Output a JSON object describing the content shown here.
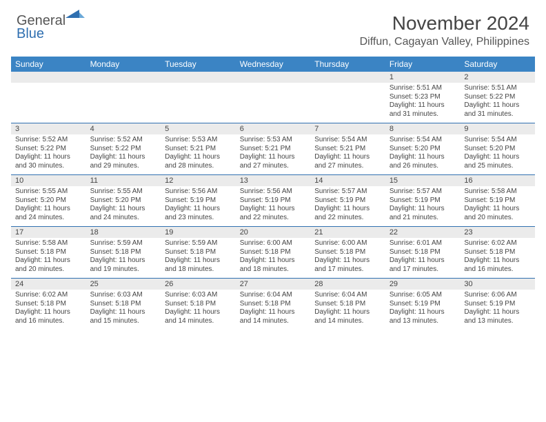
{
  "brand": {
    "general": "General",
    "blue": "Blue"
  },
  "title": "November 2024",
  "location": "Diffun, Cagayan Valley, Philippines",
  "colors": {
    "header_bg": "#3b84c4",
    "border": "#2f6fb0",
    "daynum_bg": "#ebebeb",
    "text": "#444444"
  },
  "day_names": [
    "Sunday",
    "Monday",
    "Tuesday",
    "Wednesday",
    "Thursday",
    "Friday",
    "Saturday"
  ],
  "weeks": [
    [
      {
        "n": "",
        "sr": "",
        "ss": "",
        "dl": ""
      },
      {
        "n": "",
        "sr": "",
        "ss": "",
        "dl": ""
      },
      {
        "n": "",
        "sr": "",
        "ss": "",
        "dl": ""
      },
      {
        "n": "",
        "sr": "",
        "ss": "",
        "dl": ""
      },
      {
        "n": "",
        "sr": "",
        "ss": "",
        "dl": ""
      },
      {
        "n": "1",
        "sr": "Sunrise: 5:51 AM",
        "ss": "Sunset: 5:23 PM",
        "dl": "Daylight: 11 hours and 31 minutes."
      },
      {
        "n": "2",
        "sr": "Sunrise: 5:51 AM",
        "ss": "Sunset: 5:22 PM",
        "dl": "Daylight: 11 hours and 31 minutes."
      }
    ],
    [
      {
        "n": "3",
        "sr": "Sunrise: 5:52 AM",
        "ss": "Sunset: 5:22 PM",
        "dl": "Daylight: 11 hours and 30 minutes."
      },
      {
        "n": "4",
        "sr": "Sunrise: 5:52 AM",
        "ss": "Sunset: 5:22 PM",
        "dl": "Daylight: 11 hours and 29 minutes."
      },
      {
        "n": "5",
        "sr": "Sunrise: 5:53 AM",
        "ss": "Sunset: 5:21 PM",
        "dl": "Daylight: 11 hours and 28 minutes."
      },
      {
        "n": "6",
        "sr": "Sunrise: 5:53 AM",
        "ss": "Sunset: 5:21 PM",
        "dl": "Daylight: 11 hours and 27 minutes."
      },
      {
        "n": "7",
        "sr": "Sunrise: 5:54 AM",
        "ss": "Sunset: 5:21 PM",
        "dl": "Daylight: 11 hours and 27 minutes."
      },
      {
        "n": "8",
        "sr": "Sunrise: 5:54 AM",
        "ss": "Sunset: 5:20 PM",
        "dl": "Daylight: 11 hours and 26 minutes."
      },
      {
        "n": "9",
        "sr": "Sunrise: 5:54 AM",
        "ss": "Sunset: 5:20 PM",
        "dl": "Daylight: 11 hours and 25 minutes."
      }
    ],
    [
      {
        "n": "10",
        "sr": "Sunrise: 5:55 AM",
        "ss": "Sunset: 5:20 PM",
        "dl": "Daylight: 11 hours and 24 minutes."
      },
      {
        "n": "11",
        "sr": "Sunrise: 5:55 AM",
        "ss": "Sunset: 5:20 PM",
        "dl": "Daylight: 11 hours and 24 minutes."
      },
      {
        "n": "12",
        "sr": "Sunrise: 5:56 AM",
        "ss": "Sunset: 5:19 PM",
        "dl": "Daylight: 11 hours and 23 minutes."
      },
      {
        "n": "13",
        "sr": "Sunrise: 5:56 AM",
        "ss": "Sunset: 5:19 PM",
        "dl": "Daylight: 11 hours and 22 minutes."
      },
      {
        "n": "14",
        "sr": "Sunrise: 5:57 AM",
        "ss": "Sunset: 5:19 PM",
        "dl": "Daylight: 11 hours and 22 minutes."
      },
      {
        "n": "15",
        "sr": "Sunrise: 5:57 AM",
        "ss": "Sunset: 5:19 PM",
        "dl": "Daylight: 11 hours and 21 minutes."
      },
      {
        "n": "16",
        "sr": "Sunrise: 5:58 AM",
        "ss": "Sunset: 5:19 PM",
        "dl": "Daylight: 11 hours and 20 minutes."
      }
    ],
    [
      {
        "n": "17",
        "sr": "Sunrise: 5:58 AM",
        "ss": "Sunset: 5:18 PM",
        "dl": "Daylight: 11 hours and 20 minutes."
      },
      {
        "n": "18",
        "sr": "Sunrise: 5:59 AM",
        "ss": "Sunset: 5:18 PM",
        "dl": "Daylight: 11 hours and 19 minutes."
      },
      {
        "n": "19",
        "sr": "Sunrise: 5:59 AM",
        "ss": "Sunset: 5:18 PM",
        "dl": "Daylight: 11 hours and 18 minutes."
      },
      {
        "n": "20",
        "sr": "Sunrise: 6:00 AM",
        "ss": "Sunset: 5:18 PM",
        "dl": "Daylight: 11 hours and 18 minutes."
      },
      {
        "n": "21",
        "sr": "Sunrise: 6:00 AM",
        "ss": "Sunset: 5:18 PM",
        "dl": "Daylight: 11 hours and 17 minutes."
      },
      {
        "n": "22",
        "sr": "Sunrise: 6:01 AM",
        "ss": "Sunset: 5:18 PM",
        "dl": "Daylight: 11 hours and 17 minutes."
      },
      {
        "n": "23",
        "sr": "Sunrise: 6:02 AM",
        "ss": "Sunset: 5:18 PM",
        "dl": "Daylight: 11 hours and 16 minutes."
      }
    ],
    [
      {
        "n": "24",
        "sr": "Sunrise: 6:02 AM",
        "ss": "Sunset: 5:18 PM",
        "dl": "Daylight: 11 hours and 16 minutes."
      },
      {
        "n": "25",
        "sr": "Sunrise: 6:03 AM",
        "ss": "Sunset: 5:18 PM",
        "dl": "Daylight: 11 hours and 15 minutes."
      },
      {
        "n": "26",
        "sr": "Sunrise: 6:03 AM",
        "ss": "Sunset: 5:18 PM",
        "dl": "Daylight: 11 hours and 14 minutes."
      },
      {
        "n": "27",
        "sr": "Sunrise: 6:04 AM",
        "ss": "Sunset: 5:18 PM",
        "dl": "Daylight: 11 hours and 14 minutes."
      },
      {
        "n": "28",
        "sr": "Sunrise: 6:04 AM",
        "ss": "Sunset: 5:18 PM",
        "dl": "Daylight: 11 hours and 14 minutes."
      },
      {
        "n": "29",
        "sr": "Sunrise: 6:05 AM",
        "ss": "Sunset: 5:19 PM",
        "dl": "Daylight: 11 hours and 13 minutes."
      },
      {
        "n": "30",
        "sr": "Sunrise: 6:06 AM",
        "ss": "Sunset: 5:19 PM",
        "dl": "Daylight: 11 hours and 13 minutes."
      }
    ]
  ]
}
